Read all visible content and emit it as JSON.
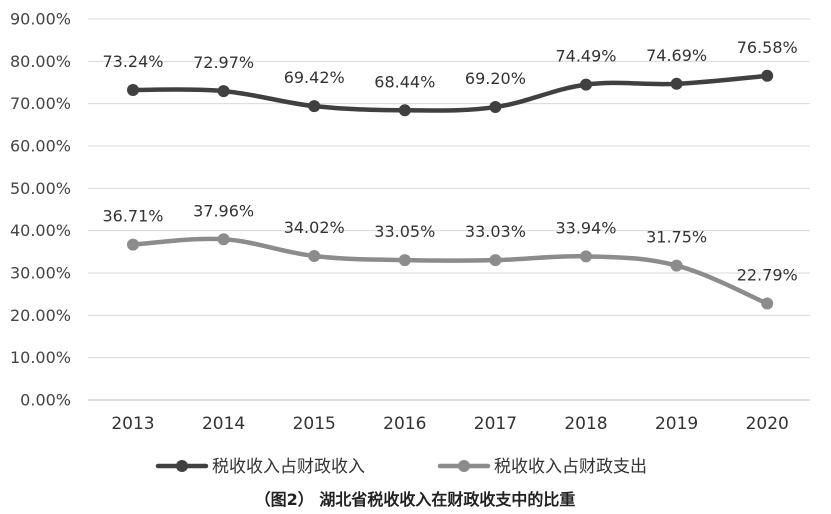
{
  "chart_data": {
    "type": "line",
    "categories": [
      "2013",
      "2014",
      "2015",
      "2016",
      "2017",
      "2018",
      "2019",
      "2020"
    ],
    "y_ticks": [
      "0.00%",
      "10.00%",
      "20.00%",
      "30.00%",
      "40.00%",
      "50.00%",
      "60.00%",
      "70.00%",
      "80.00%",
      "90.00%"
    ],
    "ylim": [
      0,
      90
    ],
    "grid": true,
    "legend_position": "bottom",
    "series": [
      {
        "name": "税收收入占财政收入",
        "color": "#404040",
        "values": [
          73.24,
          72.97,
          69.42,
          68.44,
          69.2,
          74.49,
          74.69,
          76.58
        ],
        "labels": [
          "73.24%",
          "72.97%",
          "69.42%",
          "68.44%",
          "69.20%",
          "74.49%",
          "74.69%",
          "76.58%"
        ]
      },
      {
        "name": "税收收入占财政支出",
        "color": "#8c8c8c",
        "values": [
          36.71,
          37.96,
          34.02,
          33.05,
          33.03,
          33.94,
          31.75,
          22.79
        ],
        "labels": [
          "36.71%",
          "37.96%",
          "34.02%",
          "33.05%",
          "33.03%",
          "33.94%",
          "31.75%",
          "22.79%"
        ]
      }
    ],
    "caption": "（图2） 湖北省税收收入在财政收支中的比重"
  }
}
